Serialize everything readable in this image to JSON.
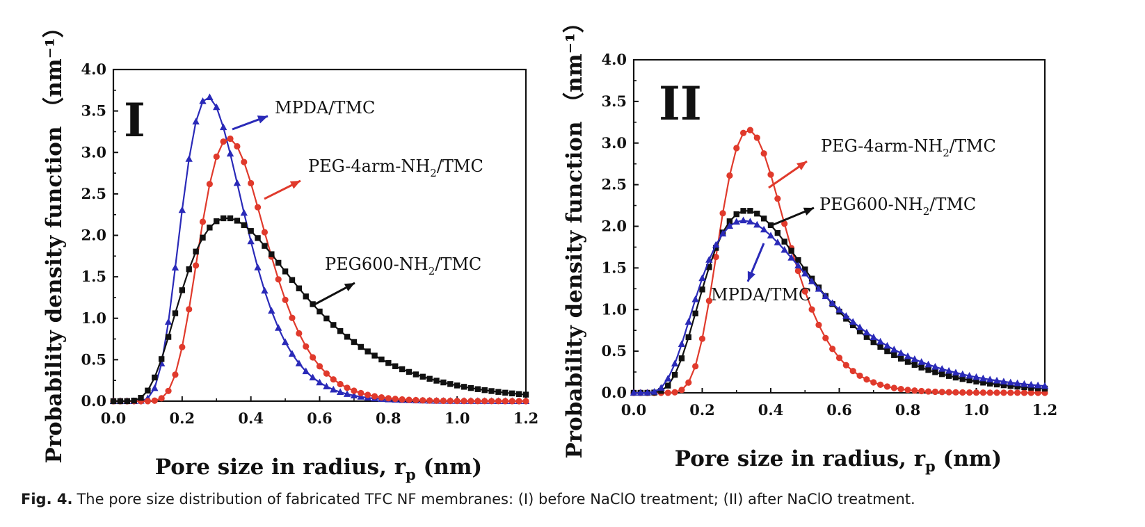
{
  "caption": {
    "label": "Fig. 4.",
    "text": "The pore size distribution of fabricated TFC NF membranes: (I) before NaClO treatment; (II) after NaClO treatment."
  },
  "colors": {
    "MPDA/TMC": "#2a2ab8",
    "PEG-4arm-NH2/TMC": "#e03a2c",
    "PEG600-NH2/TMC": "#111111"
  },
  "chart_data": [
    {
      "type": "line",
      "panel_label": "I",
      "xlabel": "Pore size in radius, r",
      "xlabel_sub": "p",
      "xlabel_suffix": " (nm)",
      "ylabel": "Probability density function （nm⁻¹）",
      "xlim": [
        0,
        1.2
      ],
      "ylim": [
        0,
        4.0
      ],
      "xticks": [
        "0.0",
        "0.2",
        "0.4",
        "0.6",
        "0.8",
        "1.0",
        "1.2"
      ],
      "yticks": [
        "0.0",
        "0.5",
        "1.0",
        "1.5",
        "2.0",
        "2.5",
        "3.0",
        "3.5",
        "4.0"
      ],
      "series": [
        {
          "name": "MPDA/TMC",
          "label_main": "MPDA/TMC",
          "label_sub": "",
          "label_tail": "",
          "marker": "triangle",
          "color": "#2a2ab8",
          "lognormal": {
            "peak_x": 0.275,
            "sigma": 0.33,
            "peak_y": 3.67
          }
        },
        {
          "name": "PEG-4arm-NH2/TMC",
          "label_main": "PEG-4arm-NH",
          "label_sub": "2",
          "label_tail": "/TMC",
          "marker": "circle",
          "color": "#e03a2c",
          "lognormal": {
            "peak_x": 0.335,
            "sigma": 0.29,
            "peak_y": 3.17
          }
        },
        {
          "name": "PEG600-NH2/TMC",
          "label_main": "PEG600-NH",
          "label_sub": "2",
          "label_tail": "/TMC",
          "marker": "square",
          "color": "#111111",
          "lognormal": {
            "peak_x": 0.33,
            "sigma": 0.5,
            "peak_y": 2.21
          }
        }
      ],
      "x_points": {
        "start": 0.0,
        "end": 1.2,
        "step": 0.02
      }
    },
    {
      "type": "line",
      "panel_label": "II",
      "xlabel": "Pore size in radius, r",
      "xlabel_sub": "p",
      "xlabel_suffix": " (nm)",
      "ylabel": "Probability density function （nm⁻¹）",
      "xlim": [
        0,
        1.2
      ],
      "ylim": [
        0,
        4.0
      ],
      "xticks": [
        "0.0",
        "0.2",
        "0.4",
        "0.6",
        "0.8",
        "1.0",
        "1.2"
      ],
      "yticks": [
        "0.0",
        "0.5",
        "1.0",
        "1.5",
        "2.0",
        "2.5",
        "3.0",
        "3.5",
        "4.0"
      ],
      "series": [
        {
          "name": "PEG-4arm-NH2/TMC",
          "label_main": "PEG-4arm-NH",
          "label_sub": "2",
          "label_tail": "/TMC",
          "marker": "circle",
          "color": "#e03a2c",
          "lognormal": {
            "peak_x": 0.335,
            "sigma": 0.29,
            "peak_y": 3.16
          }
        },
        {
          "name": "PEG600-NH2/TMC",
          "label_main": "PEG600-NH",
          "label_sub": "2",
          "label_tail": "/TMC",
          "marker": "square",
          "color": "#111111",
          "lognormal": {
            "peak_x": 0.33,
            "sigma": 0.47,
            "peak_y": 2.19
          }
        },
        {
          "name": "MPDA/TMC",
          "label_main": "MPDA/TMC",
          "label_sub": "",
          "label_tail": "",
          "marker": "triangle",
          "color": "#2a2ab8",
          "lognormal": {
            "peak_x": 0.32,
            "sigma": 0.52,
            "peak_y": 2.07
          }
        }
      ],
      "x_points": {
        "start": 0.0,
        "end": 1.2,
        "step": 0.02
      }
    }
  ]
}
